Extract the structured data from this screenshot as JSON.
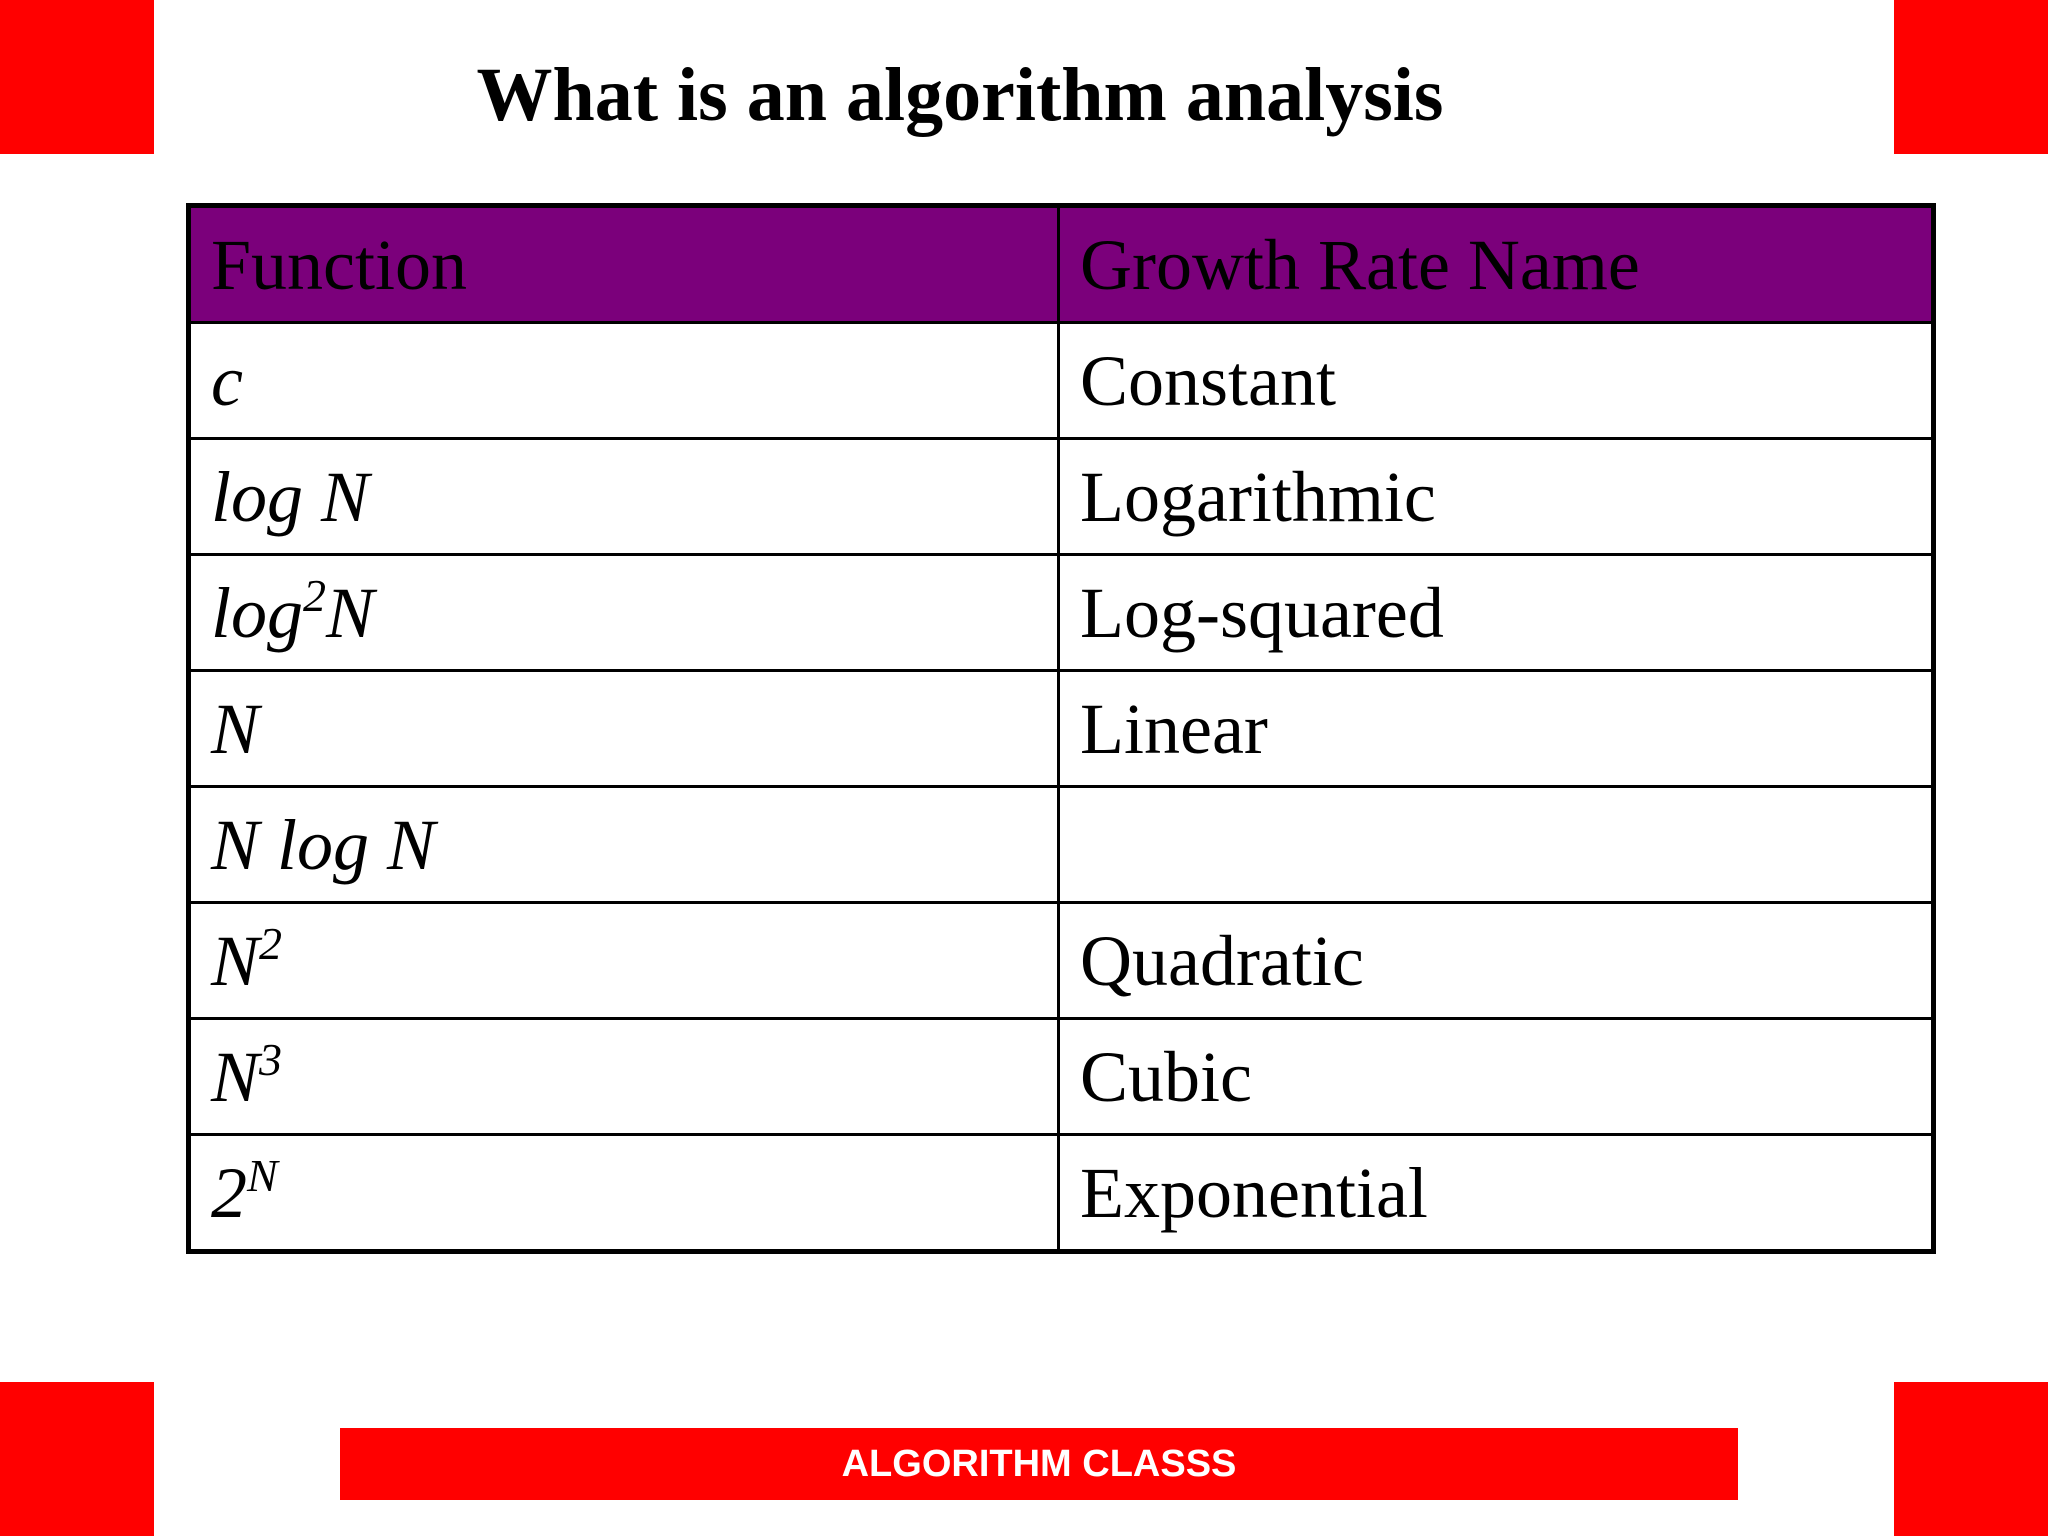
{
  "slide": {
    "title": "What is an algorithm analysis",
    "accent_color": "#ff0000",
    "header_color": "#7b007b"
  },
  "table": {
    "headers": [
      "Function",
      "Growth Rate Name"
    ],
    "rows": [
      {
        "function": {
          "base": "c",
          "sup": "",
          "tail": ""
        },
        "name": "Constant"
      },
      {
        "function": {
          "base": "log N",
          "sup": "",
          "tail": ""
        },
        "name": "Logarithmic"
      },
      {
        "function": {
          "base": "log",
          "sup": "2",
          "tail": "N"
        },
        "name": "Log-squared"
      },
      {
        "function": {
          "base": "N",
          "sup": "",
          "tail": ""
        },
        "name": "Linear"
      },
      {
        "function": {
          "base": "N log N",
          "sup": "",
          "tail": ""
        },
        "name": ""
      },
      {
        "function": {
          "base": "N",
          "sup": "2",
          "tail": ""
        },
        "name": "Quadratic"
      },
      {
        "function": {
          "base": "N",
          "sup": "3",
          "tail": ""
        },
        "name": "Cubic"
      },
      {
        "function": {
          "base": "2",
          "sup": "N",
          "tail": ""
        },
        "name": "Exponential"
      }
    ]
  },
  "footer": {
    "label": "ALGORITHM CLASSS"
  }
}
